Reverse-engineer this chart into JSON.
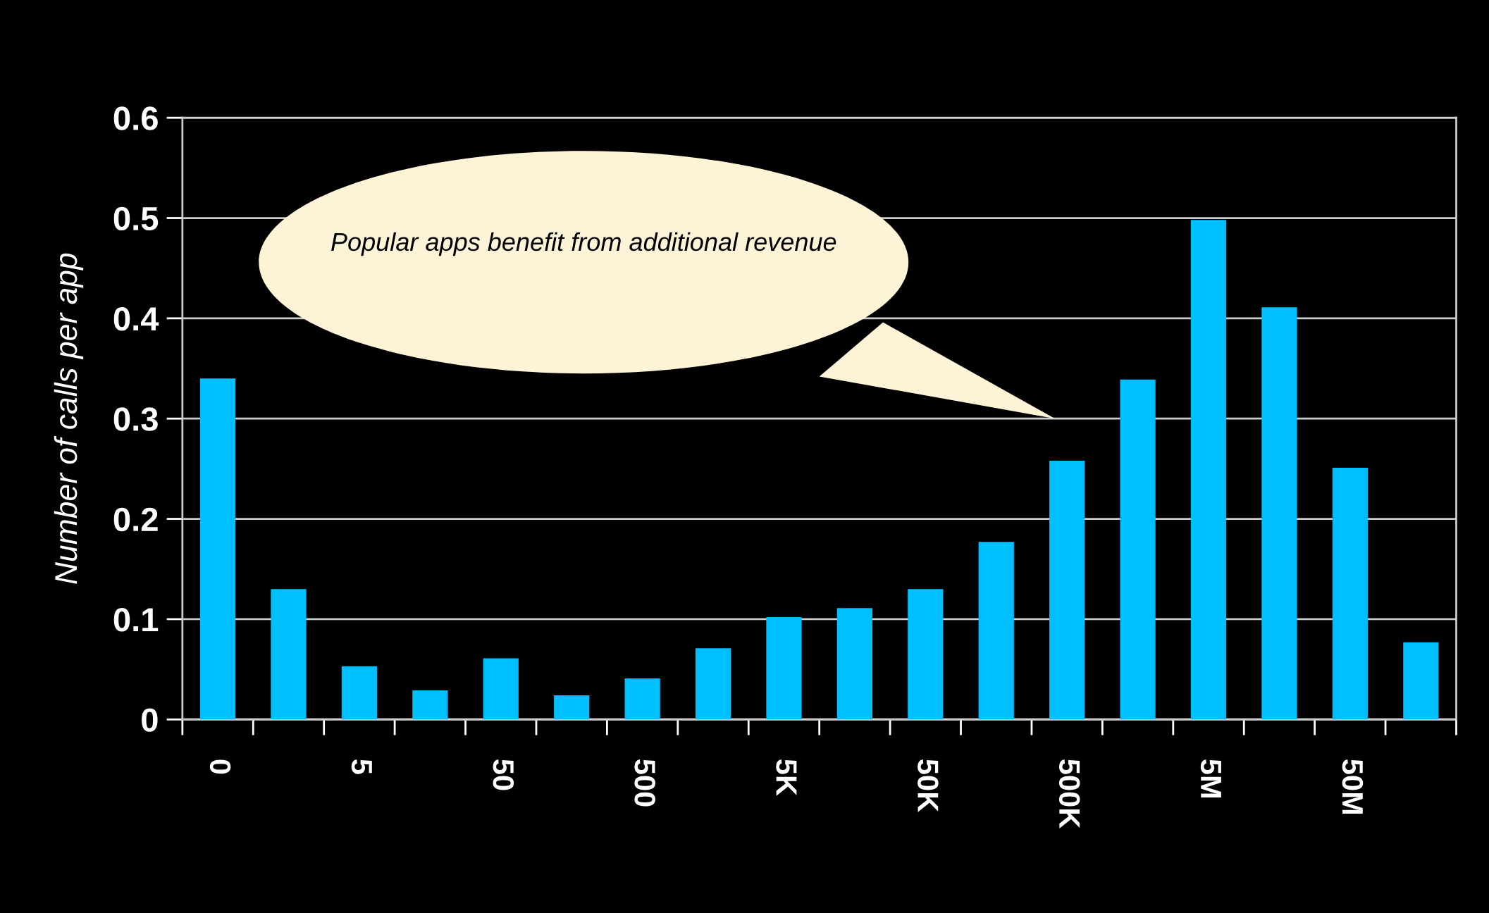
{
  "chart_data": {
    "type": "bar",
    "ylabel": "Number of calls per app",
    "categories": [
      "0",
      null,
      "5",
      null,
      "50",
      null,
      "500",
      null,
      "5K",
      null,
      "50K",
      null,
      "500K",
      null,
      "5M",
      null,
      "50M",
      null
    ],
    "values": [
      0.34,
      0.13,
      0.053,
      0.029,
      0.061,
      0.024,
      0.041,
      0.071,
      0.102,
      0.111,
      0.13,
      0.177,
      0.258,
      0.339,
      0.498,
      0.411,
      0.251,
      0.077
    ],
    "color": "#00bfff",
    "ylim": [
      0,
      0.6
    ],
    "yticks": [
      {
        "value": 0,
        "label": "0"
      },
      0.1,
      0.2,
      0.3,
      0.4,
      0.5,
      0.6
    ],
    "grid": "y",
    "annotations": [
      "Popular apps benefit from additional revenue"
    ]
  }
}
